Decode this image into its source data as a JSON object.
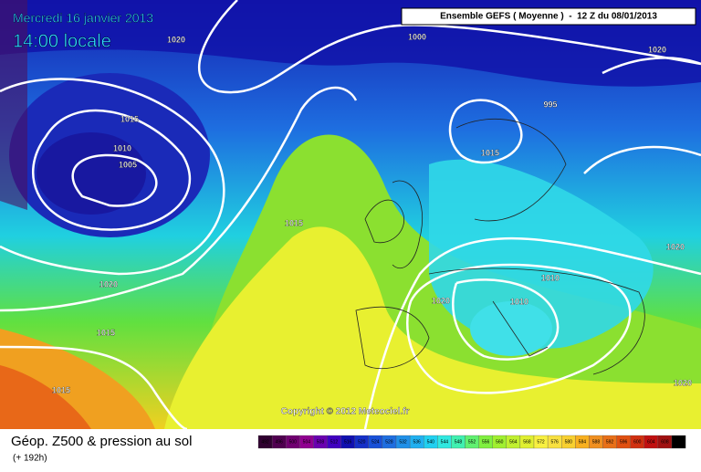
{
  "header": {
    "date": "Mercredi 16 janvier 2013",
    "time": "14:00 locale",
    "model": "Ensemble GEFS ( Moyenne )  -  12 Z du 08/01/2013"
  },
  "isobar_labels": [
    "1020",
    "1015",
    "1010",
    "1005",
    "1000",
    "995",
    "1015",
    "1015",
    "1020",
    "1010",
    "1015",
    "1020",
    "1010",
    "1015",
    "1020",
    "1020",
    "1020"
  ],
  "copyright": "Copyright © 2012 Meteociel.fr",
  "footer": {
    "title": "Géop. Z500 & pression au sol",
    "lead": "(+ 192h)"
  },
  "legend": {
    "values": [
      492,
      496,
      500,
      504,
      508,
      512,
      516,
      520,
      524,
      528,
      532,
      536,
      540,
      544,
      548,
      552,
      556,
      560,
      564,
      568,
      572,
      576,
      580,
      584,
      588,
      592,
      596,
      600,
      604,
      608,
      612
    ]
  }
}
